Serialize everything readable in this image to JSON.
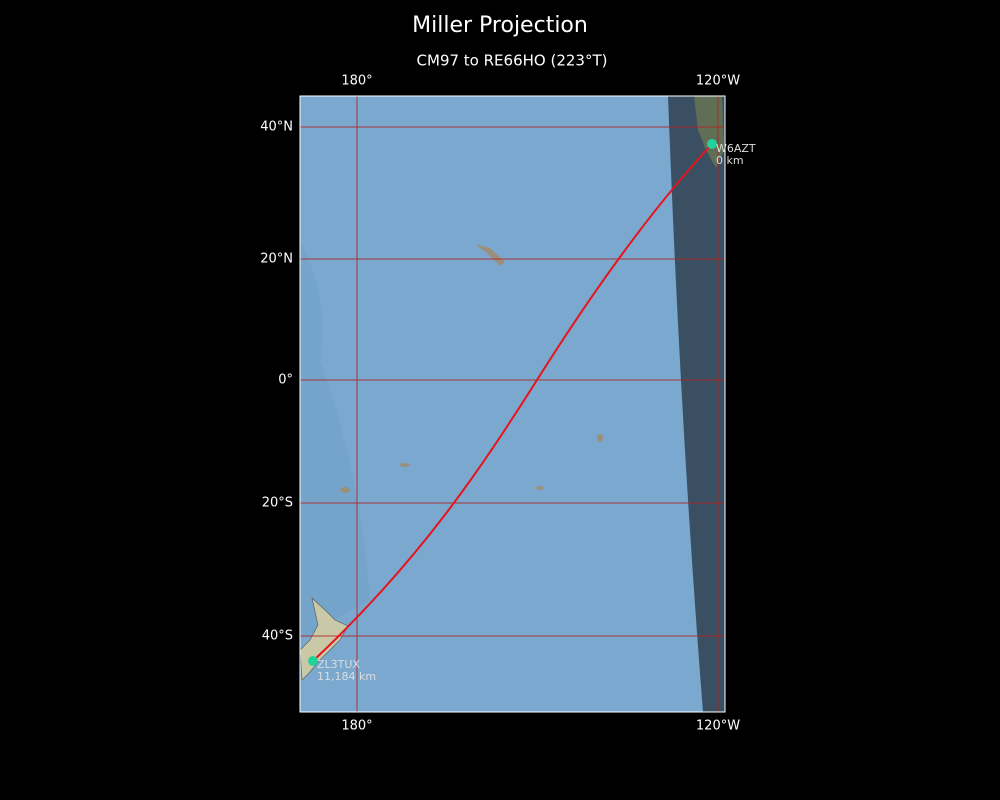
{
  "header": {
    "title": "Miller Projection",
    "subtitle": "CM97 to RE66HO (223°T)"
  },
  "grid": {
    "longitude_labels": [
      "180°",
      "120°W"
    ],
    "latitude_labels": [
      "40°N",
      "20°N",
      "0°",
      "20°S",
      "40°S"
    ]
  },
  "stations": [
    {
      "callsign": "W6AZT",
      "distance": "0 km"
    },
    {
      "callsign": "ZL3TUX",
      "distance": "11,184 km"
    }
  ]
}
